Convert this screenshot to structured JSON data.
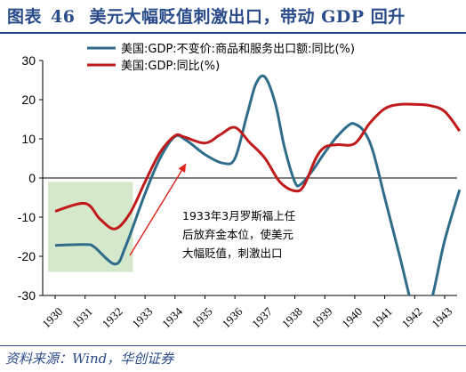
{
  "header": {
    "figure_label": "图表",
    "figure_number": "46",
    "title": "美元大幅贬值刺激出口，带动 GDP 回升"
  },
  "source": "资料来源：Wind，华创证券",
  "colors": {
    "series_1": "#2e6c8a",
    "series_2": "#c01a1a",
    "highlight_fill": "#d6e8cc",
    "arrow": "#e0201a",
    "title": "#2a4b8a"
  },
  "annotation": {
    "lines": [
      "1933年3月罗斯福上任",
      "后放弃金本位，使美元",
      "大幅贬值，刺激出口"
    ]
  },
  "chart_data": {
    "type": "line",
    "title": "美元大幅贬值刺激出口，带动 GDP 回升",
    "xlabel": "",
    "ylabel": "",
    "x": [
      1930,
      1931,
      1932,
      1933,
      1934,
      1935,
      1936,
      1937,
      1938,
      1939,
      1940,
      1941,
      1942,
      1943
    ],
    "ylim": [
      -30,
      30
    ],
    "yticks": [
      -30,
      -20,
      -10,
      0,
      10,
      20,
      30
    ],
    "grid": false,
    "legend_position": "top",
    "series": [
      {
        "name": "美国:GDP:不变价:商品和服务出口额:同比(%)",
        "color": "#2e6c8a",
        "points": [
          [
            1930,
            -17.2
          ],
          [
            1931,
            -17.0
          ],
          [
            1931.3,
            -17.6
          ],
          [
            1932,
            -22
          ],
          [
            1932.35,
            -17.5
          ],
          [
            1933,
            -4
          ],
          [
            1933.5,
            5
          ],
          [
            1934,
            10.6
          ],
          [
            1934.4,
            9.5
          ],
          [
            1935,
            6
          ],
          [
            1935.6,
            3.8
          ],
          [
            1936,
            5
          ],
          [
            1936.4,
            16
          ],
          [
            1936.7,
            24
          ],
          [
            1937,
            25.8
          ],
          [
            1937.35,
            19
          ],
          [
            1937.65,
            8
          ],
          [
            1938,
            -1
          ],
          [
            1938.2,
            -1.6
          ],
          [
            1938.6,
            2
          ],
          [
            1939,
            6.5
          ],
          [
            1939.4,
            10.5
          ],
          [
            1939.8,
            13.5
          ],
          [
            1940,
            13.8
          ],
          [
            1940.3,
            12
          ],
          [
            1940.6,
            7
          ],
          [
            1941,
            -5
          ],
          [
            1941.5,
            -20
          ],
          [
            1942,
            -35
          ],
          [
            1942.3,
            -37
          ],
          [
            1942.6,
            -30
          ],
          [
            1943,
            -16
          ],
          [
            1943.5,
            -3
          ]
        ]
      },
      {
        "name": "美国:GDP:同比(%)",
        "color": "#c01a1a",
        "points": [
          [
            1930,
            -8.5
          ],
          [
            1931,
            -6.5
          ],
          [
            1931.5,
            -10.5
          ],
          [
            1932,
            -13
          ],
          [
            1932.5,
            -9
          ],
          [
            1933,
            -1
          ],
          [
            1933.5,
            6.5
          ],
          [
            1934,
            10.8
          ],
          [
            1934.3,
            10.5
          ],
          [
            1935,
            8.9
          ],
          [
            1935.5,
            11
          ],
          [
            1936,
            12.9
          ],
          [
            1936.5,
            9
          ],
          [
            1937,
            5.1
          ],
          [
            1937.5,
            -1
          ],
          [
            1938,
            -3.3
          ],
          [
            1938.3,
            -2
          ],
          [
            1938.7,
            5
          ],
          [
            1939,
            7.9
          ],
          [
            1939.4,
            8.5
          ],
          [
            1940,
            8.8
          ],
          [
            1940.5,
            14
          ],
          [
            1941,
            17.7
          ],
          [
            1941.5,
            18.8
          ],
          [
            1942,
            18.8
          ],
          [
            1942.5,
            18.5
          ],
          [
            1943,
            17
          ],
          [
            1943.5,
            12
          ]
        ]
      }
    ]
  }
}
